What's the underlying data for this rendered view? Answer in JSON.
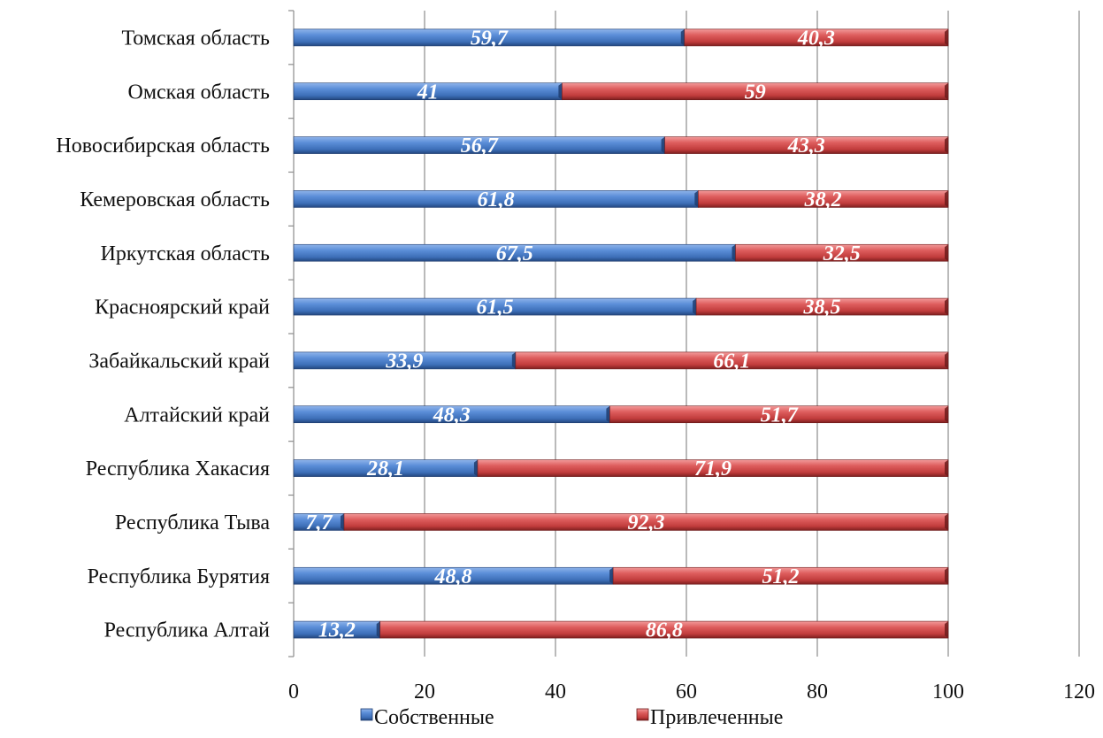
{
  "chart_data": {
    "type": "bar",
    "orientation": "horizontal",
    "stacked": true,
    "categories": [
      "Томская область",
      "Омская область",
      "Новосибирская область",
      "Кемеровская область",
      "Иркутская область",
      "Красноярский край",
      "Забайкальский край",
      "Алтайский край",
      "Республика Хакасия",
      "Республика Тыва",
      "Республика Бурятия",
      "Республика Алтай"
    ],
    "series": [
      {
        "name": "Собственные",
        "color": "#4a7cc4",
        "values": [
          59.7,
          41,
          56.7,
          61.8,
          67.5,
          61.5,
          33.9,
          48.3,
          28.1,
          7.7,
          48.8,
          13.2
        ],
        "labels": [
          "59,7",
          "41",
          "56,7",
          "61,8",
          "67,5",
          "61,5",
          "33,9",
          "48,3",
          "28,1",
          "7,7",
          "48,8",
          "13,2"
        ]
      },
      {
        "name": "Привлеченные",
        "color": "#cf4a4a",
        "values": [
          40.3,
          59,
          43.3,
          38.2,
          32.5,
          38.5,
          66.1,
          51.7,
          71.9,
          92.3,
          51.2,
          86.8
        ],
        "labels": [
          "40,3",
          "59",
          "43,3",
          "38,2",
          "32,5",
          "38,5",
          "66,1",
          "51,7",
          "71,9",
          "92,3",
          "51,2",
          "86,8"
        ]
      }
    ],
    "xlim": [
      0,
      120
    ],
    "xticks": [
      0,
      20,
      40,
      60,
      80,
      100,
      120
    ],
    "xtick_labels": [
      "0",
      "20",
      "40",
      "60",
      "80",
      "100",
      "120"
    ],
    "grid": "vertical",
    "legend_position": "bottom"
  }
}
